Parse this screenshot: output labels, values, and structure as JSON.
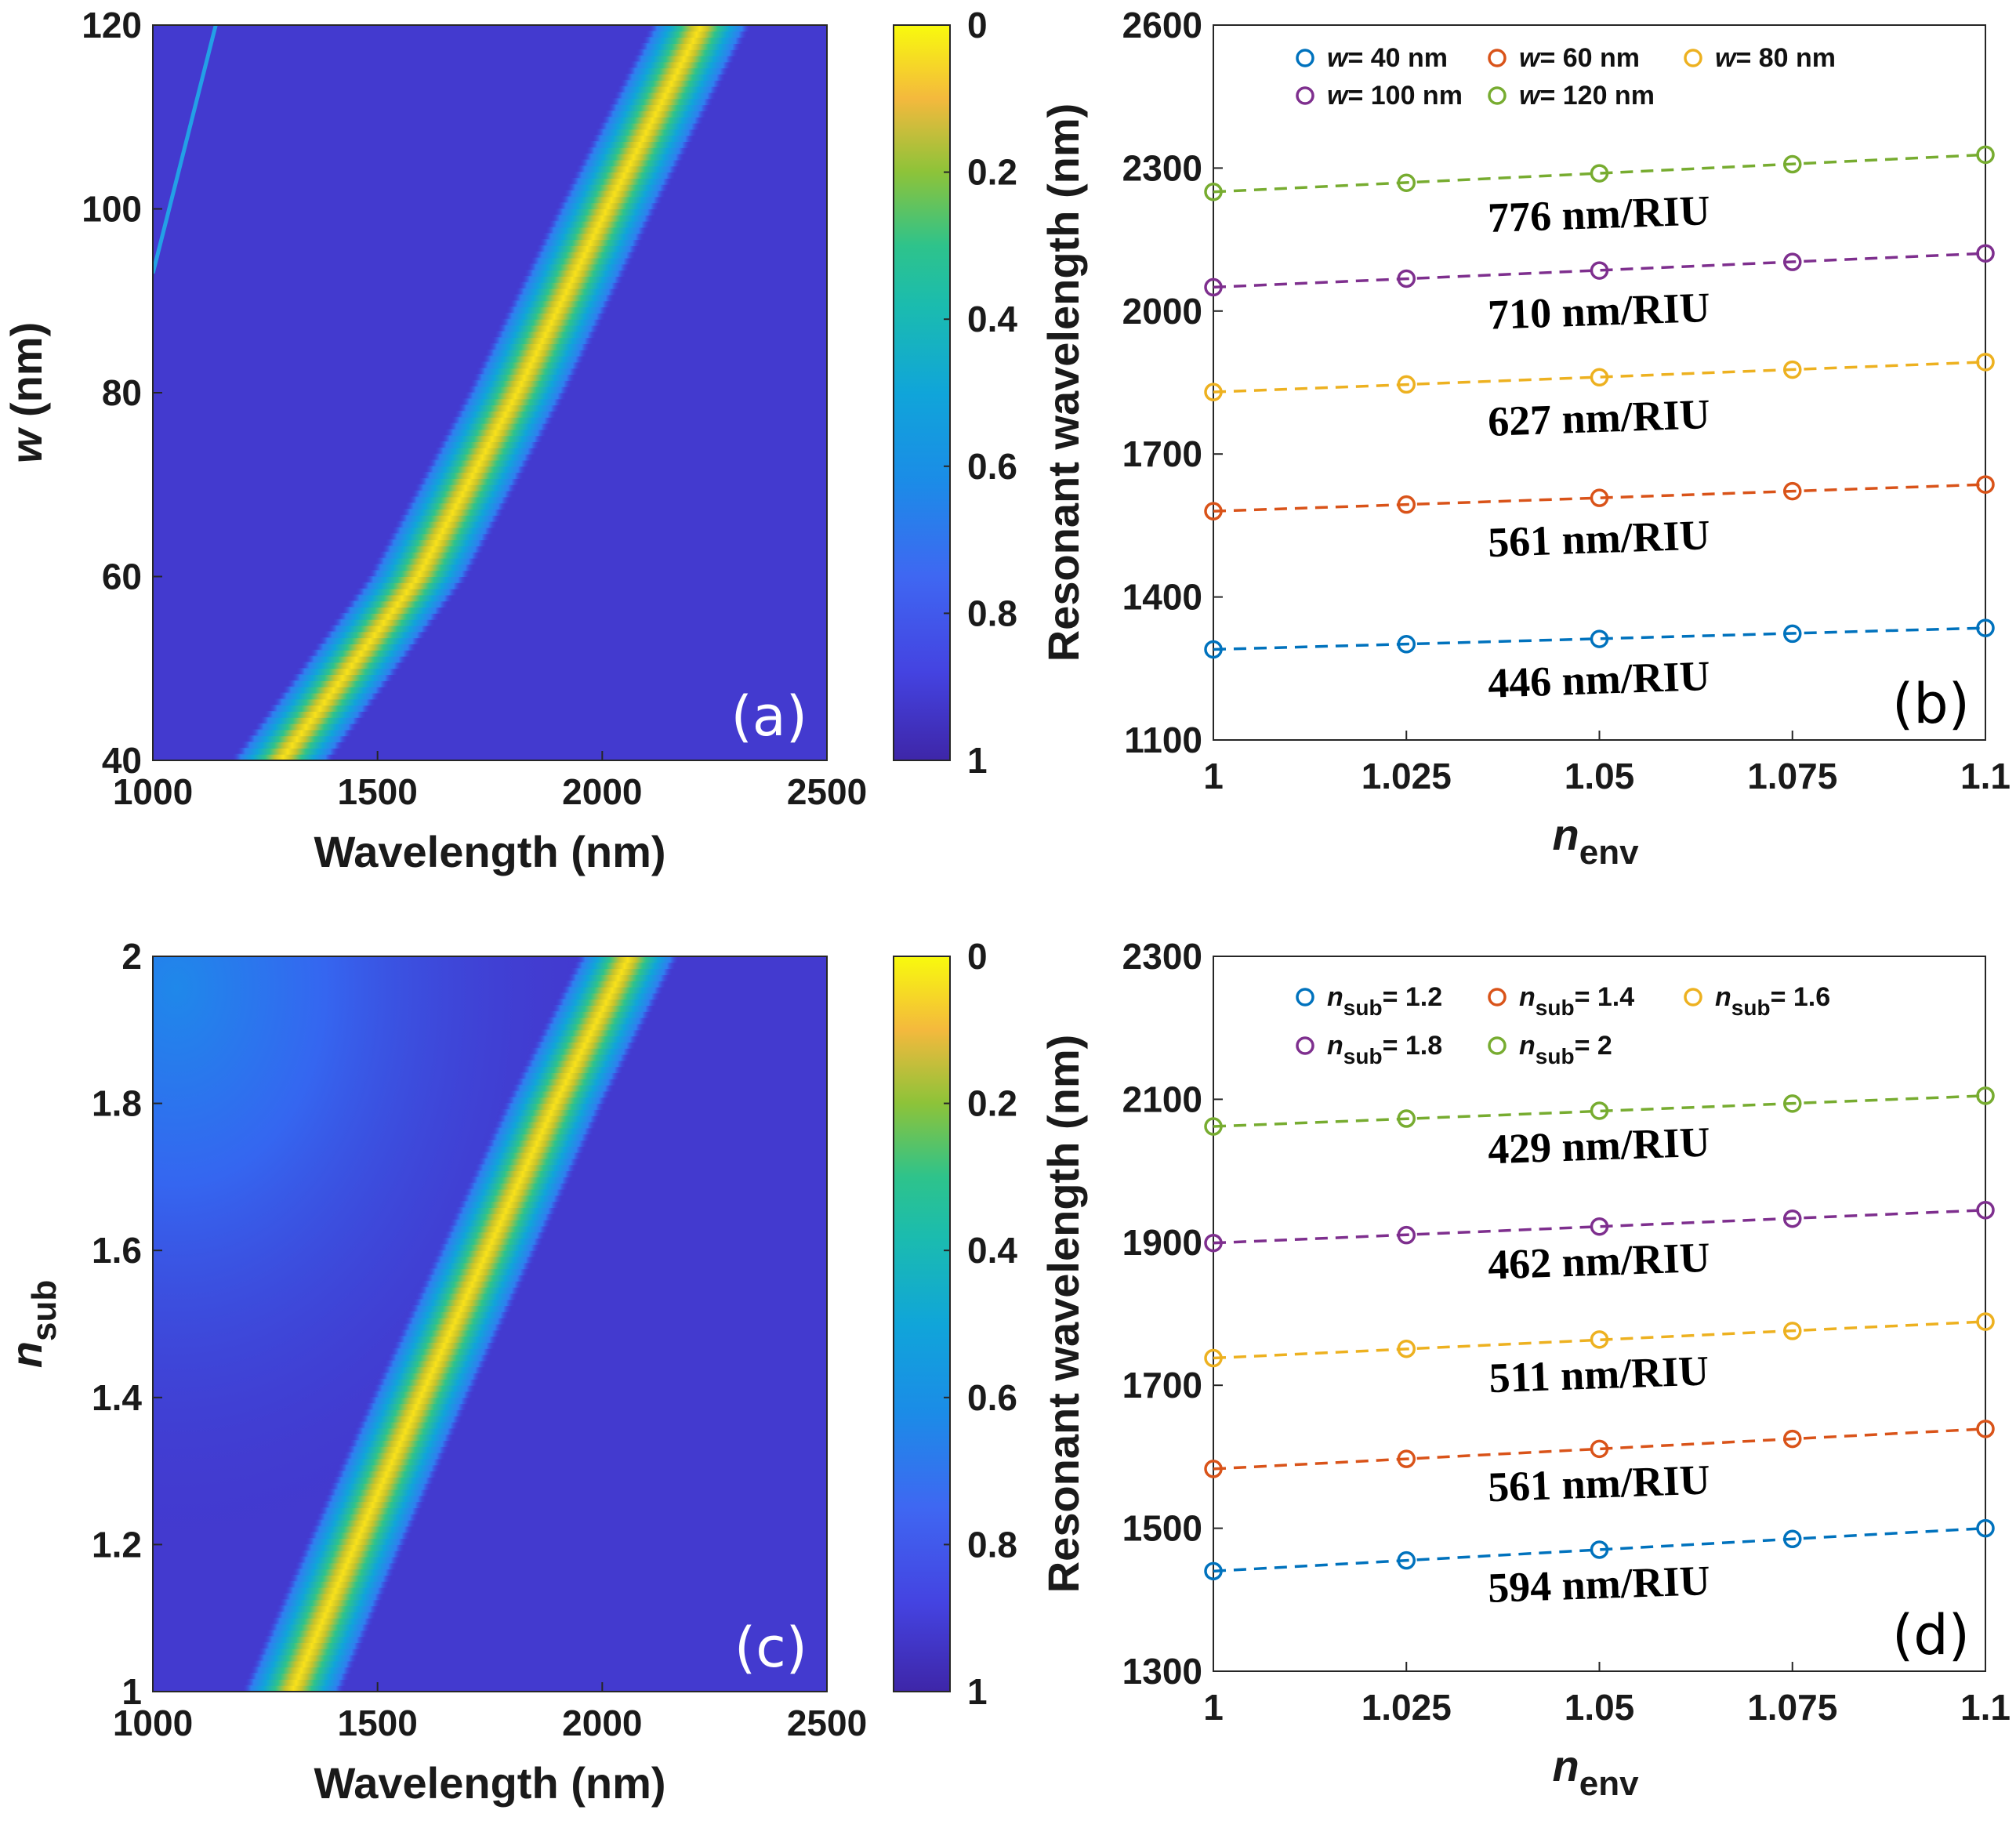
{
  "chart_data": [
    {
      "panel": "(a)",
      "type": "heatmap",
      "title": "",
      "xlabel": "Wavelength (nm)",
      "ylabel_main": "w",
      "ylabel_unit": " (nm)",
      "xlim": [
        1000,
        2500
      ],
      "ylim": [
        40,
        120
      ],
      "xticks": [
        "1000",
        "1500",
        "2000",
        "2500"
      ],
      "yticks": [
        "40",
        "60",
        "80",
        "100",
        "120"
      ],
      "colorbar": {
        "range": [
          0,
          1
        ],
        "reversed": true,
        "ticks": [
          "0",
          "0.2",
          "0.4",
          "0.6",
          "0.8",
          "1"
        ]
      },
      "ridge": {
        "y": [
          40,
          60,
          80,
          100,
          120
        ],
        "x": [
          1285,
          1590,
          1810,
          2010,
          2220
        ]
      },
      "faint_line": {
        "x": [
          1000,
          1140
        ],
        "y": [
          93,
          120
        ]
      }
    },
    {
      "panel": "(b)",
      "type": "scatter",
      "xlabel_main": "n",
      "xlabel_sub": "env",
      "ylabel": "Resonant wavelength (nm)",
      "xlim": [
        1,
        1.1
      ],
      "ylim": [
        1100,
        2600
      ],
      "xticks": [
        "1",
        "1.025",
        "1.05",
        "1.075",
        "1.1"
      ],
      "yticks": [
        "1100",
        "1400",
        "1700",
        "2000",
        "2300",
        "2600"
      ],
      "x": [
        1,
        1.025,
        1.05,
        1.075,
        1.1
      ],
      "series": [
        {
          "name": "w= 40 nm",
          "legend_var": "w",
          "legend_rest": "= 40 nm",
          "color": "#0072bd",
          "values": [
            1290,
            1301,
            1312,
            1323,
            1335
          ],
          "slope": "446 nm/RIU"
        },
        {
          "name": "w= 60 nm",
          "legend_var": "w",
          "legend_rest": "= 60 nm",
          "color": "#d95319",
          "values": [
            1580,
            1594,
            1608,
            1622,
            1636
          ],
          "slope": "561 nm/RIU"
        },
        {
          "name": "w= 80 nm",
          "legend_var": "w",
          "legend_rest": "= 80 nm",
          "color": "#edb120",
          "values": [
            1830,
            1846,
            1861,
            1877,
            1893
          ],
          "slope": "627 nm/RIU"
        },
        {
          "name": "w= 100 nm",
          "legend_var": "w",
          "legend_rest": "= 100 nm",
          "color": "#7e2f8e",
          "values": [
            2050,
            2068,
            2085,
            2103,
            2121
          ],
          "slope": "710 nm/RIU"
        },
        {
          "name": "w= 120 nm",
          "legend_var": "w",
          "legend_rest": "= 120 nm",
          "color": "#77ac30",
          "values": [
            2250,
            2269,
            2289,
            2308,
            2328
          ],
          "slope": "776 nm/RIU"
        }
      ]
    },
    {
      "panel": "(c)",
      "type": "heatmap",
      "title": "",
      "xlabel": "Wavelength (nm)",
      "ylabel_main": "n",
      "ylabel_sub": "sub",
      "xlim": [
        1000,
        2500
      ],
      "ylim": [
        1,
        2
      ],
      "xticks": [
        "1000",
        "1500",
        "2000",
        "2500"
      ],
      "yticks": [
        "1",
        "1.2",
        "1.4",
        "1.6",
        "1.8",
        "2"
      ],
      "colorbar": {
        "range": [
          0,
          1
        ],
        "reversed": true,
        "ticks": [
          "0",
          "0.2",
          "0.4",
          "0.6",
          "0.8",
          "1"
        ]
      },
      "ridge": {
        "y": [
          1,
          1.2,
          1.4,
          1.6,
          1.8,
          2
        ],
        "x": [
          1310,
          1450,
          1595,
          1745,
          1895,
          2060
        ]
      }
    },
    {
      "panel": "(d)",
      "type": "scatter",
      "xlabel_main": "n",
      "xlabel_sub": "env",
      "ylabel": "Resonant wavelength (nm)",
      "xlim": [
        1,
        1.1
      ],
      "ylim": [
        1300,
        2300
      ],
      "xticks": [
        "1",
        "1.025",
        "1.05",
        "1.075",
        "1.1"
      ],
      "yticks": [
        "1300",
        "1500",
        "1700",
        "1900",
        "2100",
        "2300"
      ],
      "x": [
        1,
        1.025,
        1.05,
        1.075,
        1.1
      ],
      "series": [
        {
          "name": "nsub= 1.2",
          "legend_var": "n",
          "legend_sub": "sub",
          "legend_rest": "= 1.2",
          "color": "#0072bd",
          "values": [
            1440,
            1455,
            1470,
            1485,
            1500
          ],
          "slope": "594 nm/RIU"
        },
        {
          "name": "nsub= 1.4",
          "legend_var": "n",
          "legend_sub": "sub",
          "legend_rest": "= 1.4",
          "color": "#d95319",
          "values": [
            1583,
            1597,
            1611,
            1625,
            1639
          ],
          "slope": "561 nm/RIU"
        },
        {
          "name": "nsub= 1.6",
          "legend_var": "n",
          "legend_sub": "sub",
          "legend_rest": "= 1.6",
          "color": "#edb120",
          "values": [
            1738,
            1751,
            1764,
            1776,
            1789
          ],
          "slope": "511 nm/RIU"
        },
        {
          "name": "nsub= 1.8",
          "legend_var": "n",
          "legend_sub": "sub",
          "legend_rest": "= 1.8",
          "color": "#7e2f8e",
          "values": [
            1899,
            1910,
            1922,
            1933,
            1945
          ],
          "slope": "462 nm/RIU"
        },
        {
          "name": "nsub= 2",
          "legend_var": "n",
          "legend_sub": "sub",
          "legend_rest": "= 2",
          "color": "#77ac30",
          "values": [
            2062,
            2073,
            2084,
            2094,
            2105
          ],
          "slope": "429 nm/RIU"
        }
      ]
    }
  ]
}
